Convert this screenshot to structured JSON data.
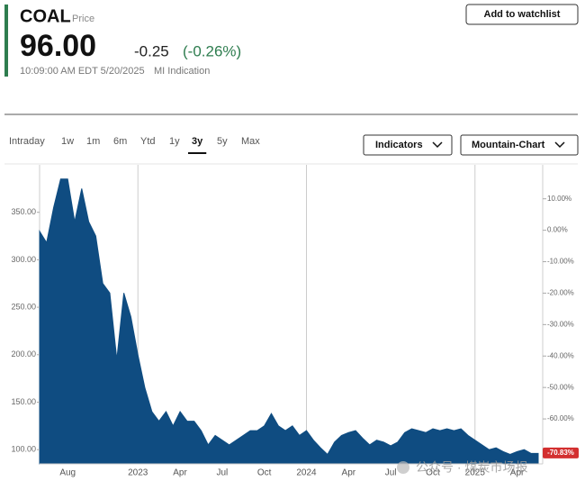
{
  "header": {
    "ticker": "COAL",
    "price_label": "Price",
    "price": "96.00",
    "change": "-0.25",
    "change_percent": "(-0.26%)",
    "timestamp": "10:09:00 AM EDT 5/20/2025",
    "indication": "MI Indication",
    "watchlist_button": "Add to watchlist"
  },
  "tabs": [
    "Intraday",
    "1w",
    "1m",
    "6m",
    "Ytd",
    "1y",
    "3y",
    "5y",
    "Max"
  ],
  "active_tab": 6,
  "dropdowns": [
    "Indicators",
    "Mountain-Chart"
  ],
  "chart_data": {
    "type": "area",
    "color": "#0f4c81",
    "categories": [
      null,
      null,
      null,
      null,
      "Aug",
      null,
      null,
      null,
      null,
      null,
      null,
      null,
      null,
      null,
      "2023",
      null,
      null,
      null,
      null,
      null,
      "Apr",
      null,
      null,
      null,
      null,
      null,
      "Jul",
      null,
      null,
      null,
      null,
      null,
      "Oct",
      null,
      null,
      null,
      null,
      null,
      "2024",
      null,
      null,
      null,
      null,
      null,
      "Apr",
      null,
      null,
      null,
      null,
      null,
      "Jul",
      null,
      null,
      null,
      null,
      null,
      "Oct",
      null,
      null,
      null,
      null,
      null,
      "2025",
      null,
      null,
      null,
      null,
      null,
      "Apr",
      null,
      null,
      null
    ],
    "values": [
      330,
      318,
      355,
      385,
      385,
      340,
      375,
      340,
      325,
      275,
      265,
      195,
      265,
      240,
      200,
      165,
      140,
      130,
      140,
      125,
      140,
      130,
      130,
      120,
      105,
      115,
      110,
      105,
      110,
      115,
      120,
      120,
      125,
      138,
      125,
      120,
      125,
      115,
      120,
      110,
      102,
      95,
      108,
      115,
      118,
      120,
      112,
      105,
      110,
      108,
      104,
      108,
      118,
      122,
      120,
      118,
      122,
      120,
      122,
      120,
      122,
      115,
      110,
      105,
      100,
      102,
      98,
      95,
      98,
      100,
      96,
      96
    ],
    "ylim": [
      85,
      400
    ],
    "yticks": [
      {
        "value": 100,
        "label": "100.00"
      },
      {
        "value": 150,
        "label": "150.00"
      },
      {
        "value": 200,
        "label": "200.00"
      },
      {
        "value": 250,
        "label": "250.00"
      },
      {
        "value": 300,
        "label": "300.00"
      },
      {
        "value": 350,
        "label": "350.00"
      }
    ],
    "y2lim": [
      -74.3,
      20.8
    ],
    "y2ticks": [
      {
        "value": 10,
        "label": "10.00%"
      },
      {
        "value": 0,
        "label": "0.00%"
      },
      {
        "value": -10,
        "label": "-10.00%"
      },
      {
        "value": -20,
        "label": "-20.00%"
      },
      {
        "value": -30,
        "label": "-30.00%"
      },
      {
        "value": -40,
        "label": "-40.00%"
      },
      {
        "value": -50,
        "label": "-50.00%"
      },
      {
        "value": -60,
        "label": "-60.00%"
      }
    ],
    "y2_marker": {
      "value": -70.83,
      "label": "-70.83%"
    }
  },
  "watermark": "公众号 · 煤炭市场报"
}
